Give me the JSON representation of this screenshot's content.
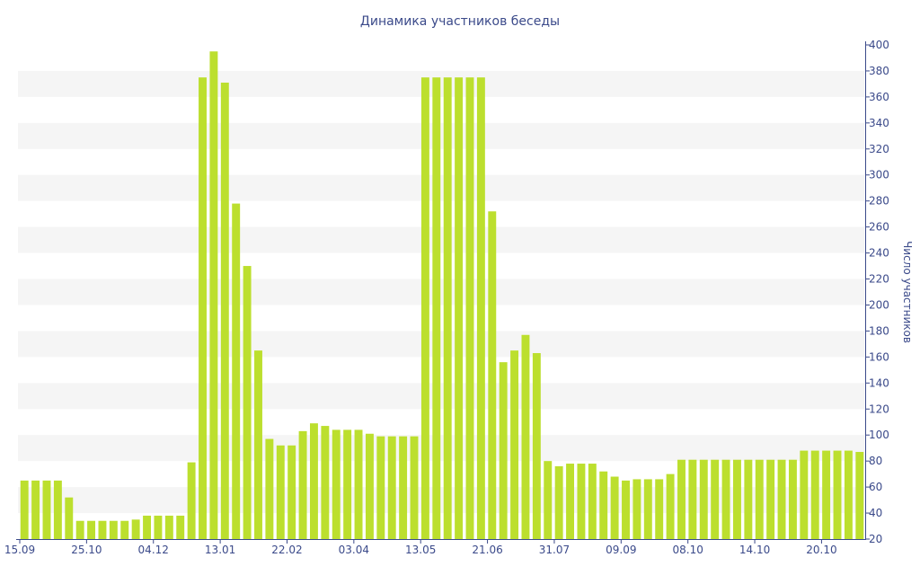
{
  "chart_data": {
    "type": "bar",
    "title": "Динамика участников беседы",
    "ylabel": "Число участников",
    "xlabel": "",
    "ylim": [
      20,
      400
    ],
    "y_ticks": [
      20,
      40,
      60,
      80,
      100,
      120,
      140,
      160,
      180,
      200,
      220,
      240,
      260,
      280,
      300,
      320,
      340,
      360,
      380,
      400
    ],
    "y_axis_position": "right",
    "grid": "alternating horizontal bands",
    "x_tick_labels": [
      {
        "index": 0,
        "label": "15.09"
      },
      {
        "index": 6,
        "label": "25.10"
      },
      {
        "index": 12,
        "label": "04.12"
      },
      {
        "index": 18,
        "label": "13.01"
      },
      {
        "index": 24,
        "label": "22.02"
      },
      {
        "index": 30,
        "label": "03.04"
      },
      {
        "index": 36,
        "label": "13.05"
      },
      {
        "index": 42,
        "label": "21.06"
      },
      {
        "index": 48,
        "label": "31.07"
      },
      {
        "index": 54,
        "label": "09.09"
      },
      {
        "index": 60,
        "label": "08.10"
      },
      {
        "index": 66,
        "label": "14.10"
      },
      {
        "index": 72,
        "label": "20.10"
      }
    ],
    "values": [
      65,
      65,
      65,
      65,
      52,
      34,
      34,
      34,
      34,
      34,
      35,
      38,
      38,
      38,
      38,
      79,
      375,
      395,
      371,
      278,
      230,
      165,
      97,
      92,
      92,
      103,
      109,
      107,
      104,
      104,
      104,
      101,
      99,
      99,
      99,
      99,
      375,
      375,
      375,
      375,
      375,
      375,
      272,
      156,
      165,
      177,
      163,
      80,
      76,
      78,
      78,
      78,
      72,
      68,
      65,
      66,
      66,
      66,
      70,
      81,
      81,
      81,
      81,
      81,
      81,
      81,
      81,
      81,
      81,
      81,
      88,
      88,
      88,
      88,
      88,
      87
    ],
    "colors": {
      "bar": "#bcdf2e",
      "text": "#3b4a8a",
      "band": "#f5f5f5",
      "axis": "#3b4a8a"
    }
  }
}
